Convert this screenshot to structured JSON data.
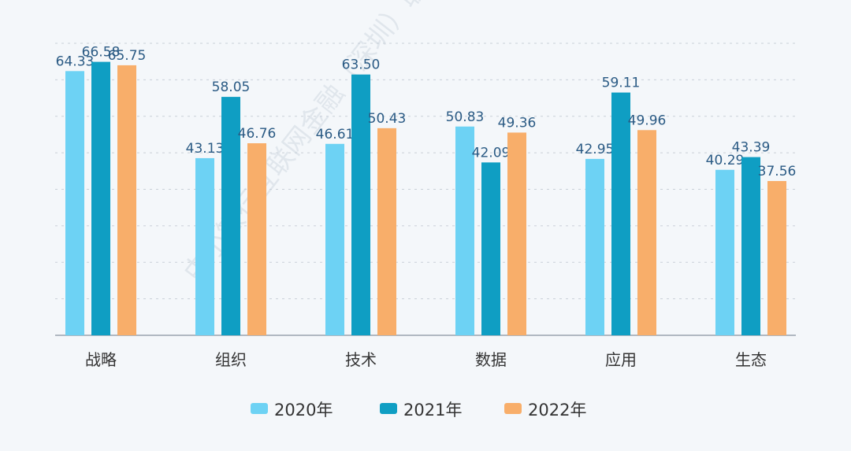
{
  "chart_data": {
    "type": "bar",
    "title": "",
    "xlabel": "",
    "ylabel": "",
    "ylim": [
      0,
      71.1
    ],
    "grid": true,
    "legend_position": "bottom",
    "categories": [
      "战略",
      "组织",
      "技术",
      "数据",
      "应用",
      "生态"
    ],
    "series": [
      {
        "name": "2020年",
        "color": "#6dd2f4",
        "values": [
          64.33,
          43.13,
          46.61,
          50.83,
          42.95,
          40.29
        ],
        "labels": [
          "64.33",
          "43.13",
          "46.61",
          "50.83",
          "42.95",
          "40.29"
        ]
      },
      {
        "name": "2021年",
        "color": "#0f9ec3",
        "values": [
          66.58,
          58.05,
          63.5,
          42.09,
          59.11,
          43.39
        ],
        "labels": [
          "66.58",
          "58.05",
          "63.50",
          "42.09",
          "59.11",
          "43.39"
        ]
      },
      {
        "name": "2022年",
        "color": "#f8ae6a",
        "values": [
          65.75,
          46.76,
          50.43,
          49.36,
          49.96,
          37.56
        ],
        "labels": [
          "65.75",
          "46.76",
          "50.43",
          "49.36",
          "49.96",
          "37.56"
        ]
      }
    ],
    "watermark": "中小银行互联网金融（深圳）联盟"
  }
}
